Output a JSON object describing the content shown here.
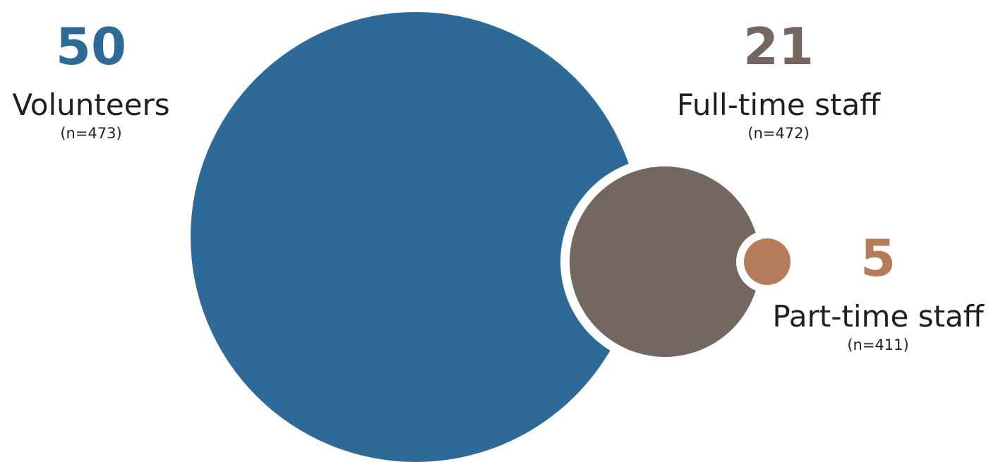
{
  "chart_data": {
    "type": "bubble",
    "series": [
      {
        "category": "Volunteers",
        "value": 50,
        "value_label": "50",
        "n_label": "(n=473)",
        "color": "#2e6a98"
      },
      {
        "category": "Full-time staff",
        "value": 21,
        "value_label": "21",
        "n_label": "(n=472)",
        "color": "#746661"
      },
      {
        "category": "Part-time staff",
        "value": 5,
        "value_label": "5",
        "n_label": "(n=411)",
        "color": "#b47c59"
      }
    ]
  }
}
